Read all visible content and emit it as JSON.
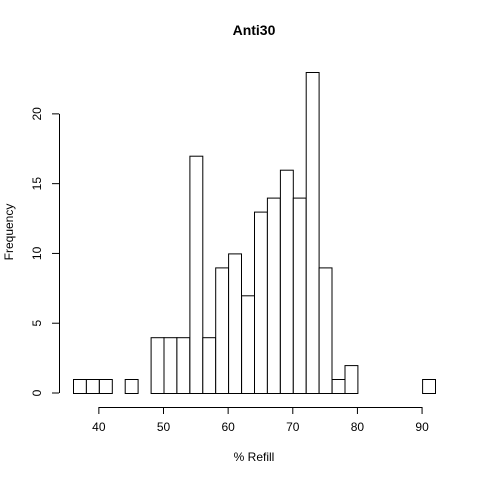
{
  "chart_data": {
    "type": "bar",
    "title": "Anti30",
    "xlabel": "% Refill",
    "ylabel": "Frequency",
    "bin_width": 2,
    "bins": [
      {
        "start": 36,
        "end": 38,
        "count": 1
      },
      {
        "start": 38,
        "end": 40,
        "count": 1
      },
      {
        "start": 40,
        "end": 42,
        "count": 1
      },
      {
        "start": 42,
        "end": 44,
        "count": 0
      },
      {
        "start": 44,
        "end": 46,
        "count": 1
      },
      {
        "start": 46,
        "end": 48,
        "count": 0
      },
      {
        "start": 48,
        "end": 50,
        "count": 4
      },
      {
        "start": 50,
        "end": 52,
        "count": 4
      },
      {
        "start": 52,
        "end": 54,
        "count": 4
      },
      {
        "start": 54,
        "end": 56,
        "count": 17
      },
      {
        "start": 56,
        "end": 58,
        "count": 4
      },
      {
        "start": 58,
        "end": 60,
        "count": 9
      },
      {
        "start": 60,
        "end": 62,
        "count": 10
      },
      {
        "start": 62,
        "end": 64,
        "count": 7
      },
      {
        "start": 64,
        "end": 66,
        "count": 13
      },
      {
        "start": 66,
        "end": 68,
        "count": 14
      },
      {
        "start": 68,
        "end": 70,
        "count": 16
      },
      {
        "start": 70,
        "end": 72,
        "count": 14
      },
      {
        "start": 72,
        "end": 74,
        "count": 23
      },
      {
        "start": 74,
        "end": 76,
        "count": 9
      },
      {
        "start": 76,
        "end": 78,
        "count": 1
      },
      {
        "start": 78,
        "end": 80,
        "count": 2
      },
      {
        "start": 80,
        "end": 82,
        "count": 0
      },
      {
        "start": 82,
        "end": 84,
        "count": 0
      },
      {
        "start": 84,
        "end": 86,
        "count": 0
      },
      {
        "start": 86,
        "end": 88,
        "count": 0
      },
      {
        "start": 88,
        "end": 90,
        "count": 0
      },
      {
        "start": 90,
        "end": 92,
        "count": 1
      }
    ],
    "xlim": [
      36,
      92
    ],
    "ylim": [
      0,
      23
    ],
    "xticks": [
      40,
      50,
      60,
      70,
      80,
      90
    ],
    "yticks": [
      0,
      5,
      10,
      15,
      20
    ],
    "grid": false
  }
}
